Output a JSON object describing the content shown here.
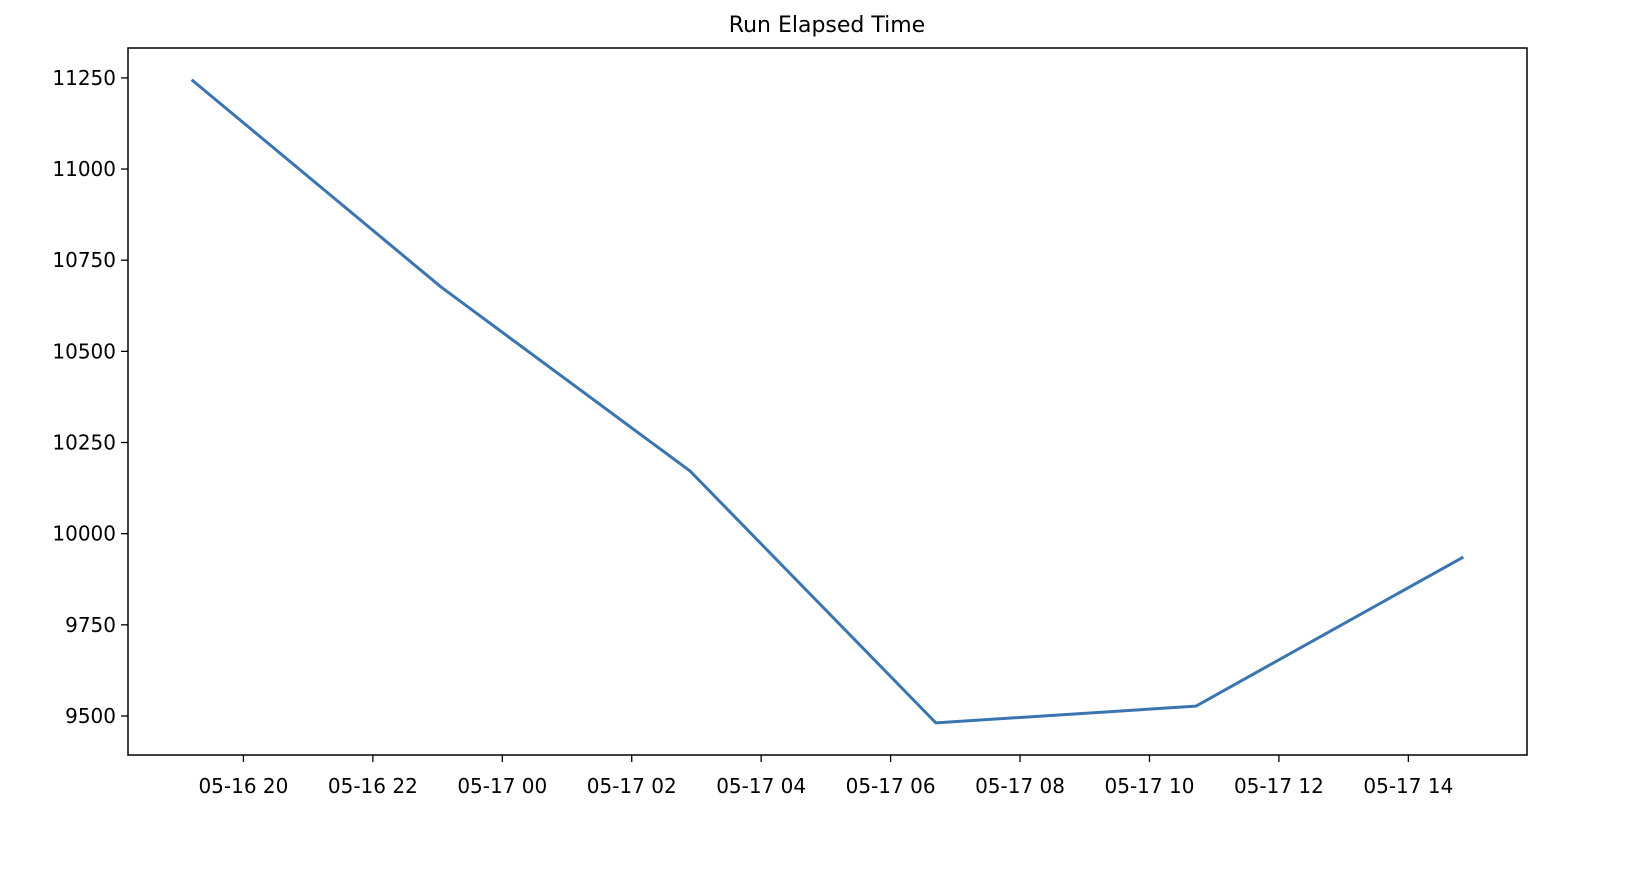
{
  "chart_data": {
    "type": "line",
    "title": "Run Elapsed Time",
    "xlabel": "",
    "ylabel": "",
    "x_format": "MM-DD HH:mm",
    "x": [
      "05-16 19:12",
      "05-16 23:03",
      "05-17 02:54",
      "05-17 06:42",
      "05-17 10:43",
      "05-17 14:51"
    ],
    "series": [
      {
        "values": [
          11245,
          10677,
          10172,
          9481,
          9527,
          9936
        ],
        "color": "#3a75b0"
      }
    ],
    "xlim": [
      "05-16 18:13",
      "05-17 15:50"
    ],
    "ylim": [
      9393,
      11332
    ],
    "yticks": [
      9500,
      9750,
      10000,
      10250,
      10500,
      10750,
      11000,
      11250
    ],
    "xticks": [
      "05-16 20",
      "05-16 22",
      "05-17 00",
      "05-17 02",
      "05-17 04",
      "05-17 06",
      "05-17 08",
      "05-17 10",
      "05-17 12",
      "05-17 14"
    ],
    "grid": false,
    "legend": "none"
  }
}
